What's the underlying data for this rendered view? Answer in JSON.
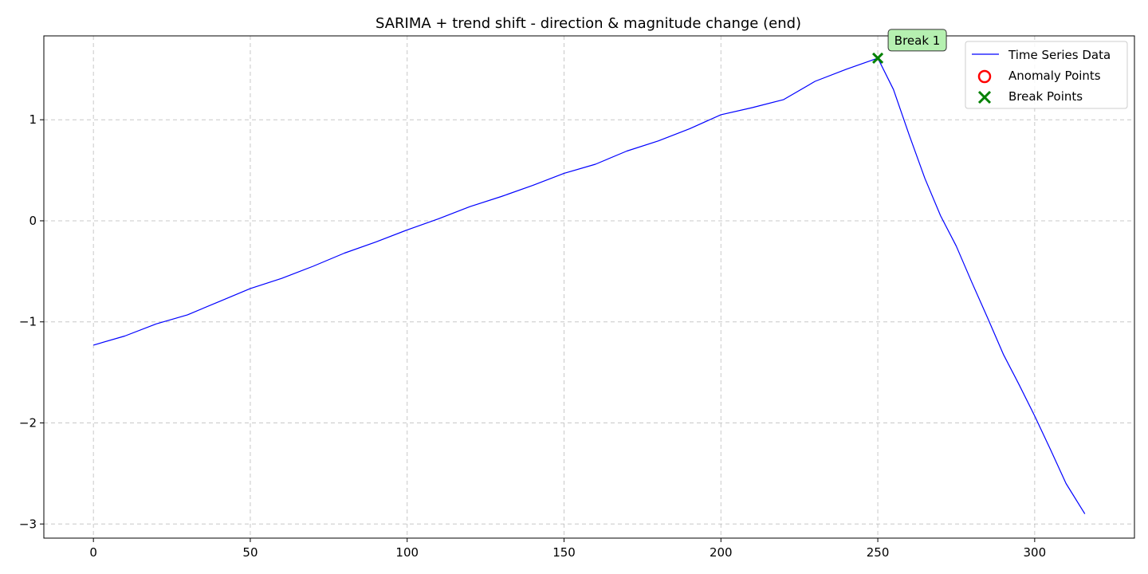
{
  "chart_data": {
    "type": "line",
    "title": "SARIMA + trend shift - direction & magnitude change (end)",
    "xlabel": "",
    "ylabel": "",
    "xlim": [
      -15.8,
      331.8
    ],
    "ylim": [
      -3.14,
      1.83
    ],
    "xticks": [
      0,
      50,
      100,
      150,
      200,
      250,
      300
    ],
    "yticks": [
      -3,
      -2,
      -1,
      0,
      1
    ],
    "grid": true,
    "legend_position": "upper right",
    "series": [
      {
        "name": "Time Series Data",
        "color": "#0000ff",
        "x": [
          0,
          10,
          20,
          30,
          40,
          50,
          60,
          70,
          80,
          90,
          100,
          110,
          120,
          130,
          140,
          150,
          160,
          170,
          180,
          190,
          200,
          210,
          220,
          230,
          240,
          250,
          255,
          260,
          265,
          270,
          275,
          280,
          285,
          290,
          295,
          300,
          305,
          310,
          316
        ],
        "y": [
          -1.23,
          -1.14,
          -1.02,
          -0.93,
          -0.8,
          -0.67,
          -0.57,
          -0.45,
          -0.32,
          -0.21,
          -0.09,
          0.02,
          0.14,
          0.24,
          0.35,
          0.47,
          0.56,
          0.69,
          0.79,
          0.91,
          1.05,
          1.12,
          1.2,
          1.38,
          1.5,
          1.61,
          1.3,
          0.85,
          0.42,
          0.05,
          -0.25,
          -0.61,
          -0.96,
          -1.32,
          -1.62,
          -1.93,
          -2.26,
          -2.6,
          -2.9
        ]
      }
    ],
    "anomaly_points": {
      "name": "Anomaly Points",
      "color": "#ff0000",
      "x": [],
      "y": []
    },
    "break_points": {
      "name": "Break Points",
      "color": "#008000",
      "x": [
        250
      ],
      "y": [
        1.61
      ]
    },
    "annotations": [
      {
        "text": "Break 1",
        "x": 250,
        "y": 1.61,
        "bg": "#b5f0b0"
      }
    ]
  }
}
